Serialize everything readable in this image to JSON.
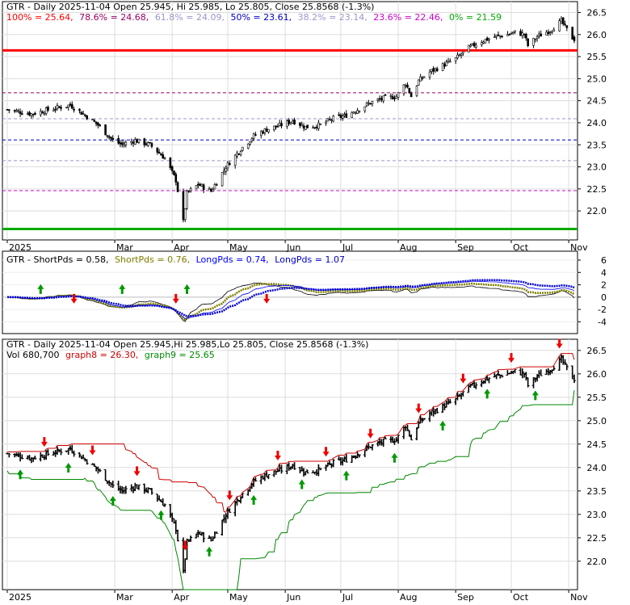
{
  "x_labels": [
    "2025",
    "Mar",
    "Apr",
    "May",
    "Jun",
    "Jul",
    "Aug",
    "Sep",
    "Oct",
    "Nov"
  ],
  "panel1": {
    "header": [
      {
        "text": "GTR - Daily 2025-11-04 Open 25.945, Hi 25.985, Lo 25.805, Close 25.8568 (-1.3%)",
        "color": "#000000"
      }
    ],
    "fib_labels": [
      {
        "text": "100% = 25.64,",
        "color": "#ff0000"
      },
      {
        "text": "78.6% = 24.68,",
        "color": "#990066"
      },
      {
        "text": "61.8% = 24.09,",
        "color": "#9999cc"
      },
      {
        "text": "50% = 23.61,",
        "color": "#0000cc"
      },
      {
        "text": "38.2% = 23.14,",
        "color": "#9999cc"
      },
      {
        "text": "23.6% = 22.46,",
        "color": "#cc00cc"
      },
      {
        "text": "0% = 21.59",
        "color": "#00aa00"
      }
    ],
    "y_ticks": [
      "26.5",
      "26.0",
      "25.5",
      "25.0",
      "24.5",
      "24.0",
      "23.5",
      "23.0",
      "22.5",
      "22.0"
    ]
  },
  "panel2": {
    "labels": [
      {
        "text": "GTR - ShortPds = 0.58,",
        "color": "#000000"
      },
      {
        "text": "ShortPds = 0.76,",
        "color": "#808000"
      },
      {
        "text": "LongPds = 0.74,",
        "color": "#0000ff"
      },
      {
        "text": "LongPds = 1.07",
        "color": "#0000cc"
      }
    ],
    "y_ticks": [
      "6",
      "4",
      "2",
      "0",
      "-2",
      "-4"
    ]
  },
  "panel3": {
    "header": [
      {
        "text": "GTR - Daily 2025-11-04 Open 25.945,Hi 25.985,Lo 25.805, Close 25.8568 (-1.3%)",
        "color": "#000000"
      }
    ],
    "sub": [
      {
        "text": "Vol 680,700",
        "color": "#000000"
      },
      {
        "text": "graph8 = 26.30,",
        "color": "#cc0000"
      },
      {
        "text": "graph9 = 25.65",
        "color": "#008800"
      }
    ],
    "y_ticks": [
      "26.5",
      "26.0",
      "25.5",
      "25.0",
      "24.5",
      "24.0",
      "23.5",
      "23.0",
      "22.5",
      "22.0"
    ]
  },
  "chart_data": [
    {
      "type": "candlestick",
      "title": "GTR - Daily 2025-11-04",
      "x_range": [
        "2025-01-02",
        "2025-11-04"
      ],
      "ylim": [
        21.6,
        26.6
      ],
      "last": {
        "date": "2025-11-04",
        "open": 25.945,
        "high": 25.985,
        "low": 25.805,
        "close": 25.8568,
        "change_pct": -1.3
      },
      "fib_levels": [
        {
          "name": "100%",
          "value": 25.64
        },
        {
          "name": "78.6%",
          "value": 24.68
        },
        {
          "name": "61.8%",
          "value": 24.09
        },
        {
          "name": "50%",
          "value": 23.61
        },
        {
          "name": "38.2%",
          "value": 23.14
        },
        {
          "name": "23.6%",
          "value": 22.46
        },
        {
          "name": "0%",
          "value": 21.59
        }
      ],
      "close_path": [
        [
          "2025-01-02",
          24.3
        ],
        [
          "2025-01-15",
          24.2
        ],
        [
          "2025-01-30",
          24.35
        ],
        [
          "2025-02-05",
          24.4
        ],
        [
          "2025-02-12",
          24.2
        ],
        [
          "2025-02-20",
          23.95
        ],
        [
          "2025-02-28",
          23.6
        ],
        [
          "2025-03-05",
          23.5
        ],
        [
          "2025-03-12",
          23.6
        ],
        [
          "2025-03-20",
          23.5
        ],
        [
          "2025-03-28",
          23.2
        ],
        [
          "2025-04-03",
          22.7
        ],
        [
          "2025-04-07",
          21.75
        ],
        [
          "2025-04-09",
          22.4
        ],
        [
          "2025-04-15",
          22.6
        ],
        [
          "2025-04-22",
          22.45
        ],
        [
          "2025-04-30",
          23.0
        ],
        [
          "2025-05-08",
          23.4
        ],
        [
          "2025-05-15",
          23.7
        ],
        [
          "2025-05-22",
          23.85
        ],
        [
          "2025-05-30",
          23.95
        ],
        [
          "2025-06-05",
          24.05
        ],
        [
          "2025-06-12",
          23.9
        ],
        [
          "2025-06-20",
          23.95
        ],
        [
          "2025-06-27",
          24.1
        ],
        [
          "2025-07-03",
          24.15
        ],
        [
          "2025-07-10",
          24.3
        ],
        [
          "2025-07-17",
          24.45
        ],
        [
          "2025-07-24",
          24.55
        ],
        [
          "2025-07-31",
          24.6
        ],
        [
          "2025-08-05",
          24.9
        ],
        [
          "2025-08-08",
          24.6
        ],
        [
          "2025-08-12",
          24.95
        ],
        [
          "2025-08-18",
          25.15
        ],
        [
          "2025-08-25",
          25.3
        ],
        [
          "2025-09-01",
          25.45
        ],
        [
          "2025-09-08",
          25.7
        ],
        [
          "2025-09-15",
          25.85
        ],
        [
          "2025-09-22",
          25.95
        ],
        [
          "2025-09-29",
          26.0
        ],
        [
          "2025-10-03",
          26.05
        ],
        [
          "2025-10-08",
          26.0
        ],
        [
          "2025-10-10",
          25.75
        ],
        [
          "2025-10-15",
          25.95
        ],
        [
          "2025-10-22",
          26.1
        ],
        [
          "2025-10-28",
          26.3
        ],
        [
          "2025-11-04",
          25.86
        ]
      ]
    },
    {
      "type": "line",
      "title": "GTR - ShortPds / LongPds",
      "ylim": [
        -5,
        6
      ],
      "series": [
        {
          "name": "ShortPds",
          "color": "#000000",
          "values": [
            0.58
          ]
        },
        {
          "name": "ShortPds",
          "color": "#808000",
          "values": [
            0.76
          ]
        },
        {
          "name": "LongPds",
          "color": "#0000ff",
          "values": [
            0.74
          ]
        },
        {
          "name": "LongPds",
          "color": "#0000cc",
          "values": [
            1.07
          ]
        }
      ]
    },
    {
      "type": "candlestick",
      "title": "GTR - Daily 2025-11-04",
      "ylim": [
        21.6,
        26.6
      ],
      "volume": 680700,
      "series": [
        {
          "name": "graph8",
          "color": "#cc0000",
          "last": 26.3
        },
        {
          "name": "graph9",
          "color": "#008800",
          "last": 25.65
        }
      ]
    }
  ]
}
